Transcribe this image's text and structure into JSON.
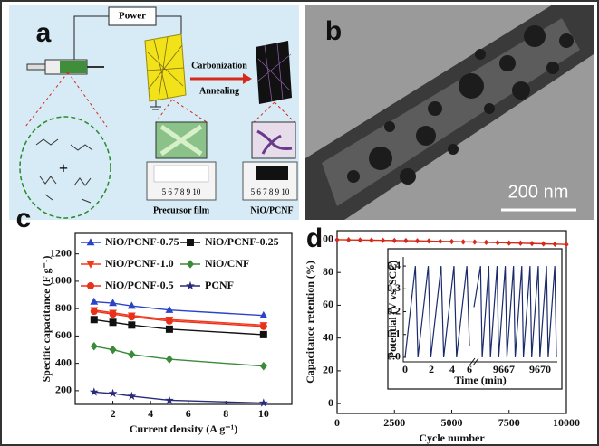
{
  "panels": {
    "a": {
      "label": "a",
      "power": "Power",
      "step1": "Carbonization",
      "step2": "Annealing",
      "plus": "+",
      "film1": "Precursor film",
      "film2": "NiO/PCNF",
      "ruler1": "5 6 7 8 9 10",
      "ruler2": "5 6 7 8 9 10"
    },
    "b": {
      "label": "b",
      "scale_bar": "200 nm"
    },
    "c": {
      "label": "c"
    },
    "d": {
      "label": "d"
    }
  },
  "chart_data": [
    {
      "type": "line",
      "x_label": "Current density (A g⁻¹)",
      "y_label": "Specific capacitance (F g⁻¹)",
      "x": [
        1,
        2,
        3,
        5,
        10
      ],
      "xlim": [
        0,
        11.5
      ],
      "xticks": [
        2,
        4,
        6,
        8,
        10
      ],
      "ylim": [
        100,
        1350
      ],
      "yticks": [
        200,
        400,
        600,
        800,
        1000,
        1200
      ],
      "series": [
        {
          "name": "NiO/PCNF-0.75",
          "color": "#2a44c8",
          "marker": "triangle-up",
          "values": [
            850,
            840,
            820,
            790,
            750
          ]
        },
        {
          "name": "NiO/PCNF-1.0",
          "color": "#f03a1a",
          "marker": "triangle-down",
          "values": [
            790,
            770,
            750,
            720,
            680
          ]
        },
        {
          "name": "NiO/PCNF-0.5",
          "color": "#e8311a",
          "marker": "circle",
          "values": [
            780,
            760,
            740,
            710,
            670
          ]
        },
        {
          "name": "NiO/PCNF-0.25",
          "color": "#111111",
          "marker": "square",
          "values": [
            720,
            700,
            680,
            650,
            610
          ]
        },
        {
          "name": "NiO/CNF",
          "color": "#3a8a3a",
          "marker": "diamond",
          "values": [
            525,
            500,
            465,
            430,
            380
          ]
        },
        {
          "name": "PCNF",
          "color": "#2a2a7a",
          "marker": "star",
          "values": [
            190,
            180,
            160,
            130,
            110
          ]
        }
      ]
    },
    {
      "type": "line",
      "x_label": "Cycle number",
      "y_label": "Capacitance retention (%)",
      "x": [
        0,
        500,
        1000,
        1500,
        2000,
        2500,
        3000,
        3500,
        4000,
        4500,
        5000,
        5500,
        6000,
        6500,
        7000,
        7500,
        8000,
        8500,
        9000,
        9500,
        10000
      ],
      "xlim": [
        0,
        10000
      ],
      "xticks": [
        0,
        2500,
        5000,
        7500,
        10000
      ],
      "ylim": [
        -6,
        105.5
      ],
      "yticks": [
        0,
        20,
        40,
        60,
        80,
        100
      ],
      "series": [
        {
          "name": null,
          "color": "#d42a1a",
          "marker": "diamond",
          "values": [
            100,
            99.9,
            99.8,
            99.7,
            99.6,
            99.5,
            99.4,
            99.3,
            99.2,
            99.0,
            98.9,
            98.7,
            98.6,
            98.4,
            98.2,
            98.0,
            97.9,
            97.7,
            97.5,
            97.3,
            97.1
          ]
        }
      ]
    },
    {
      "type": "inset-line",
      "x_label": "Time (min)",
      "y_label": "Potential (V vs. SCE)",
      "xtick_labels": [
        "0",
        "2",
        "4",
        "6",
        "9667",
        "9670"
      ],
      "ylim": [
        -0.02,
        0.44
      ],
      "yticks": [
        {
          "value": 0,
          "label": "0.0"
        },
        {
          "value": 0.1,
          "label": "0.1"
        },
        {
          "value": 0.2,
          "label": "0.2"
        },
        {
          "value": 0.3,
          "label": "0.3"
        },
        {
          "value": 0.4,
          "label": "0.4"
        }
      ],
      "color": "#1a2a6a",
      "values": [
        0,
        0.4,
        0,
        0.4,
        0,
        0.4,
        0,
        0.4,
        0,
        0.4,
        0.05,
        null,
        0.22,
        0.4,
        0,
        0.4,
        0,
        0.4,
        0,
        0.4,
        0,
        0.4,
        0,
        0.4,
        0,
        0.4,
        0,
        0.4,
        0,
        0.4,
        0,
        0.4,
        0
      ]
    }
  ]
}
